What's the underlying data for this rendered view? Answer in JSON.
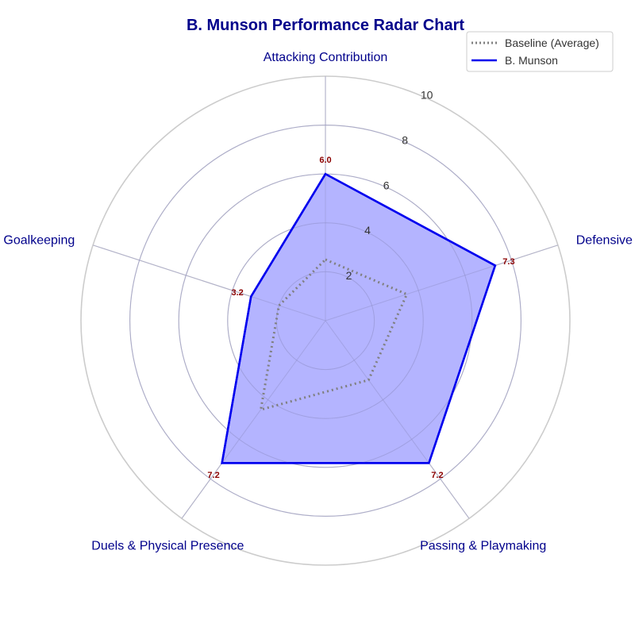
{
  "chart_data": {
    "type": "radar",
    "title": "B. Munson Performance Radar Chart",
    "categories": [
      "Attacking Contribution",
      "Defensive Capability",
      "Passing & Playmaking",
      "Duels & Physical Presence",
      "Discipline & Goalkeeping"
    ],
    "rlim": [
      0,
      10
    ],
    "rticks": [
      2,
      4,
      6,
      8,
      10
    ],
    "grid": true,
    "legend_placement": "top-right",
    "series": [
      {
        "name": "Baseline (Average)",
        "values": [
          2.5,
          3.5,
          3.0,
          4.5,
          2.0
        ],
        "color": "#808080",
        "style": "dotted"
      },
      {
        "name": "B. Munson",
        "values": [
          6.0,
          7.3,
          7.2,
          7.2,
          3.2
        ],
        "color": "#0000ee",
        "fill": "#b0b0ff",
        "style": "solid"
      }
    ],
    "value_labels": [
      "6.0",
      "7.3",
      "7.2",
      "7.2",
      "3.2"
    ],
    "colors": {
      "title": "#00008b",
      "axis_label": "#00008b",
      "value_label": "#8b0000",
      "grid": "#cccccc"
    }
  }
}
